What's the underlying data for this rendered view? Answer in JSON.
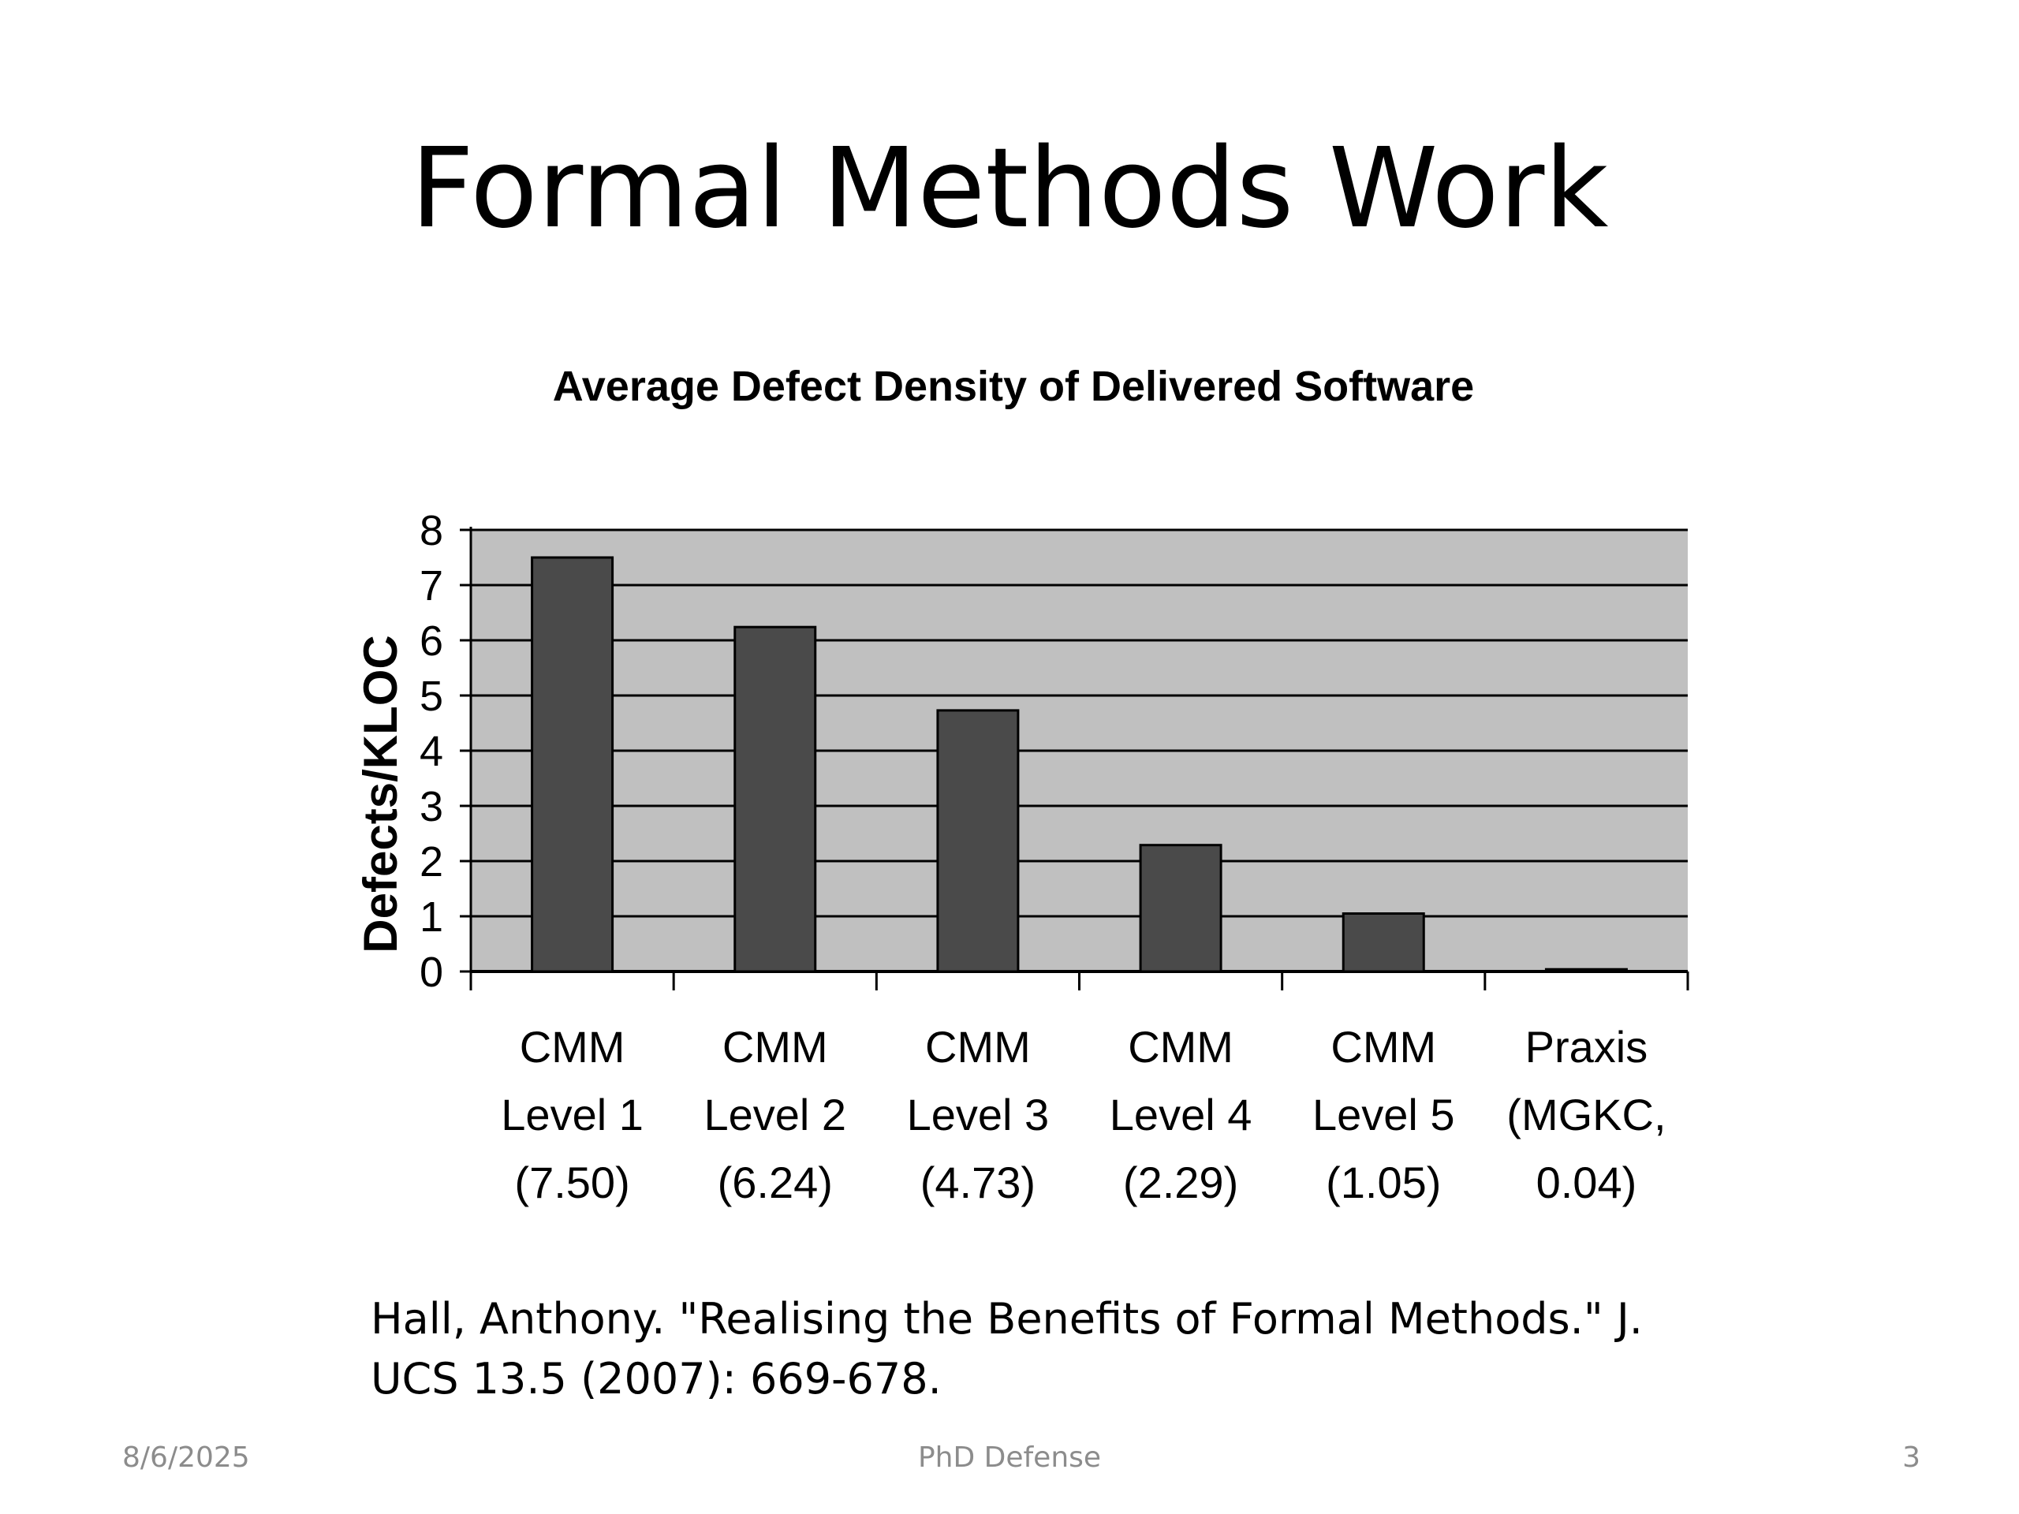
{
  "slide": {
    "title": "Formal Methods Work",
    "citation_line1": "Hall, Anthony. \"Realising the Benefits of Formal Methods.\" J.",
    "citation_line2": "UCS 13.5 (2007): 669-678.",
    "footer_date": "8/6/2025",
    "footer_center": "PhD Defense",
    "footer_page": "3"
  },
  "chart_data": {
    "type": "bar",
    "title": "Average Defect Density of Delivered Software",
    "xlabel": "",
    "ylabel": "Defects/KLOC",
    "ylim": [
      0,
      8
    ],
    "yticks": [
      "0",
      "1",
      "2",
      "3",
      "4",
      "5",
      "6",
      "7",
      "8"
    ],
    "grid": true,
    "categories": [
      [
        "CMM",
        "Level 1",
        "(7.50)"
      ],
      [
        "CMM",
        "Level 2",
        "(6.24)"
      ],
      [
        "CMM",
        "Level 3",
        "(4.73)"
      ],
      [
        "CMM",
        "Level 4",
        "(2.29)"
      ],
      [
        "CMM",
        "Level 5",
        "(1.05)"
      ],
      [
        "Praxis",
        "(MGKC,",
        "0.04)"
      ]
    ],
    "values": [
      7.5,
      6.24,
      4.73,
      2.29,
      1.05,
      0.04
    ],
    "colors": {
      "plot_bg": "#c0c0c0",
      "bar": "#4a4a4a",
      "grid": "#000000"
    }
  }
}
